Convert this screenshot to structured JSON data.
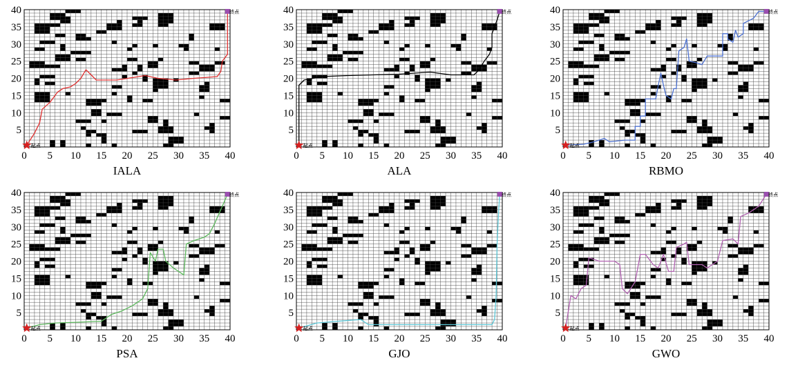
{
  "figure": {
    "start_label": "起点",
    "goal_label": "终点"
  },
  "chart_data": [
    {
      "type": "line",
      "title": "IALA",
      "xlim": [
        0,
        40
      ],
      "ylim": [
        0,
        40
      ],
      "xticks": [
        0,
        5,
        10,
        15,
        20,
        25,
        30,
        35,
        40
      ],
      "yticks": [
        5,
        10,
        15,
        20,
        25,
        30,
        35,
        40
      ],
      "grid": true,
      "path_color": "#e03030",
      "start": [
        0.5,
        0.5
      ],
      "goal": [
        39.5,
        39.5
      ],
      "path": [
        [
          0.5,
          0.5
        ],
        [
          2,
          4
        ],
        [
          3,
          7
        ],
        [
          3.5,
          11
        ],
        [
          5,
          13
        ],
        [
          6.5,
          16
        ],
        [
          7.5,
          17
        ],
        [
          9,
          17.5
        ],
        [
          10,
          18.5
        ],
        [
          11,
          20
        ],
        [
          12,
          22.5
        ],
        [
          13,
          21
        ],
        [
          14,
          19.5
        ],
        [
          18,
          19.5
        ],
        [
          23.5,
          20.8
        ],
        [
          26,
          20
        ],
        [
          29.5,
          19.5
        ],
        [
          33,
          20
        ],
        [
          37.5,
          20.5
        ],
        [
          38.2,
          22
        ],
        [
          38.5,
          25
        ],
        [
          39.5,
          27
        ],
        [
          39.5,
          39.5
        ]
      ]
    },
    {
      "type": "line",
      "title": "ALA",
      "xlim": [
        0,
        40
      ],
      "ylim": [
        0,
        40
      ],
      "xticks": [
        0,
        5,
        10,
        15,
        20,
        25,
        30,
        35,
        40
      ],
      "yticks": [
        5,
        10,
        15,
        20,
        25,
        30,
        35,
        40
      ],
      "grid": true,
      "path_color": "#000000",
      "start": [
        0.5,
        0.5
      ],
      "goal": [
        39.5,
        39.5
      ],
      "path": [
        [
          0.5,
          0.5
        ],
        [
          0.5,
          18
        ],
        [
          1.5,
          19.5
        ],
        [
          5,
          20.5
        ],
        [
          10,
          20.8
        ],
        [
          20,
          21.2
        ],
        [
          26,
          21.8
        ],
        [
          30,
          21
        ],
        [
          34.5,
          21
        ],
        [
          35.5,
          22.5
        ],
        [
          36.5,
          25
        ],
        [
          37.5,
          27
        ],
        [
          38,
          29
        ],
        [
          38,
          33
        ],
        [
          38.5,
          35
        ],
        [
          39,
          37
        ],
        [
          39.5,
          39.5
        ]
      ]
    },
    {
      "type": "line",
      "title": "RBMO",
      "xlim": [
        0,
        40
      ],
      "ylim": [
        0,
        40
      ],
      "xticks": [
        0,
        5,
        10,
        15,
        20,
        25,
        30,
        35,
        40
      ],
      "yticks": [
        5,
        10,
        15,
        20,
        25,
        30,
        35,
        40
      ],
      "grid": true,
      "path_color": "#4a6fd0",
      "start": [
        0.5,
        0.5
      ],
      "goal": [
        39.5,
        39.5
      ],
      "path": [
        [
          0.5,
          0.5
        ],
        [
          4,
          0.8
        ],
        [
          6,
          1.5
        ],
        [
          8,
          2.5
        ],
        [
          9,
          1.5
        ],
        [
          12,
          2
        ],
        [
          14,
          2
        ],
        [
          14,
          6
        ],
        [
          15,
          6
        ],
        [
          15,
          9
        ],
        [
          16,
          9
        ],
        [
          16,
          14
        ],
        [
          18,
          14
        ],
        [
          18.5,
          18
        ],
        [
          19,
          21.5
        ],
        [
          19.5,
          18
        ],
        [
          20,
          15
        ],
        [
          21,
          14
        ],
        [
          21.5,
          17
        ],
        [
          22,
          17
        ],
        [
          22.5,
          28
        ],
        [
          23.5,
          29
        ],
        [
          24,
          31.5
        ],
        [
          24.5,
          25
        ],
        [
          26,
          24.5
        ],
        [
          27,
          24
        ],
        [
          28,
          26.5
        ],
        [
          31,
          26.5
        ],
        [
          31,
          33
        ],
        [
          32,
          33
        ],
        [
          32,
          31.5
        ],
        [
          33,
          30.5
        ],
        [
          33.5,
          34
        ],
        [
          34,
          32
        ],
        [
          35,
          33
        ],
        [
          35,
          36
        ],
        [
          37,
          37.5
        ],
        [
          38,
          39.5
        ],
        [
          39.5,
          39.5
        ]
      ]
    },
    {
      "type": "line",
      "title": "PSA",
      "xlim": [
        0,
        40
      ],
      "ylim": [
        0,
        40
      ],
      "xticks": [
        0,
        5,
        10,
        15,
        20,
        25,
        30,
        35,
        40
      ],
      "yticks": [
        5,
        10,
        15,
        20,
        25,
        30,
        35,
        40
      ],
      "grid": true,
      "path_color": "#5cb85c",
      "start": [
        0.5,
        0.5
      ],
      "goal": [
        39.5,
        39.5
      ],
      "path": [
        [
          0.5,
          0.5
        ],
        [
          3,
          1.5
        ],
        [
          6,
          2
        ],
        [
          10,
          2.2
        ],
        [
          15,
          2.5
        ],
        [
          17,
          4.5
        ],
        [
          19,
          5.5
        ],
        [
          21,
          7
        ],
        [
          23,
          9
        ],
        [
          24,
          12
        ],
        [
          24.5,
          22.5
        ],
        [
          25.5,
          20
        ],
        [
          26,
          23.5
        ],
        [
          27,
          23.5
        ],
        [
          27.5,
          20
        ],
        [
          29,
          18
        ],
        [
          30,
          17
        ],
        [
          31,
          16
        ],
        [
          31.5,
          25
        ],
        [
          33,
          26
        ],
        [
          35,
          27
        ],
        [
          36,
          28
        ],
        [
          37,
          31
        ],
        [
          38.5,
          36
        ],
        [
          39.5,
          39.5
        ]
      ]
    },
    {
      "type": "line",
      "title": "GJO",
      "xlim": [
        0,
        40
      ],
      "ylim": [
        0,
        40
      ],
      "xticks": [
        0,
        5,
        10,
        15,
        20,
        25,
        30,
        35,
        40
      ],
      "yticks": [
        5,
        10,
        15,
        20,
        25,
        30,
        35,
        40
      ],
      "grid": true,
      "path_color": "#5cc8d8",
      "start": [
        0.5,
        0.5
      ],
      "goal": [
        39.5,
        39.5
      ],
      "path": [
        [
          0.5,
          0.5
        ],
        [
          4,
          2
        ],
        [
          8,
          2.5
        ],
        [
          12.5,
          3
        ],
        [
          14,
          1.5
        ],
        [
          20,
          1.5
        ],
        [
          26,
          1.5
        ],
        [
          32,
          1.5
        ],
        [
          38,
          1.5
        ],
        [
          38.5,
          3
        ],
        [
          38.8,
          10
        ],
        [
          39,
          25
        ],
        [
          39.3,
          35
        ],
        [
          39.5,
          39.5
        ]
      ]
    },
    {
      "type": "line",
      "title": "GWO",
      "xlim": [
        0,
        40
      ],
      "ylim": [
        0,
        40
      ],
      "xticks": [
        0,
        5,
        10,
        15,
        20,
        25,
        30,
        35,
        40
      ],
      "yticks": [
        5,
        10,
        15,
        20,
        25,
        30,
        35,
        40
      ],
      "grid": true,
      "path_color": "#b060b0",
      "start": [
        0.5,
        0.5
      ],
      "goal": [
        39.5,
        39.5
      ],
      "path": [
        [
          0.5,
          0.5
        ],
        [
          1.5,
          10
        ],
        [
          2.5,
          9
        ],
        [
          3.5,
          12
        ],
        [
          4.5,
          13
        ],
        [
          5,
          21
        ],
        [
          7,
          20
        ],
        [
          10,
          20
        ],
        [
          11,
          19
        ],
        [
          11.5,
          12
        ],
        [
          12.5,
          10.5
        ],
        [
          14,
          14
        ],
        [
          15,
          22
        ],
        [
          16,
          22
        ],
        [
          17.5,
          19
        ],
        [
          18.5,
          18
        ],
        [
          19.5,
          22
        ],
        [
          20.5,
          17
        ],
        [
          21.5,
          17
        ],
        [
          22,
          24
        ],
        [
          23.5,
          25
        ],
        [
          24,
          25.5
        ],
        [
          24.5,
          19
        ],
        [
          27,
          19
        ],
        [
          28,
          18
        ],
        [
          30,
          20
        ],
        [
          31,
          26
        ],
        [
          33,
          26.5
        ],
        [
          34,
          25
        ],
        [
          34.5,
          33
        ],
        [
          36,
          34
        ],
        [
          38,
          36
        ],
        [
          39.5,
          39.5
        ]
      ]
    }
  ]
}
